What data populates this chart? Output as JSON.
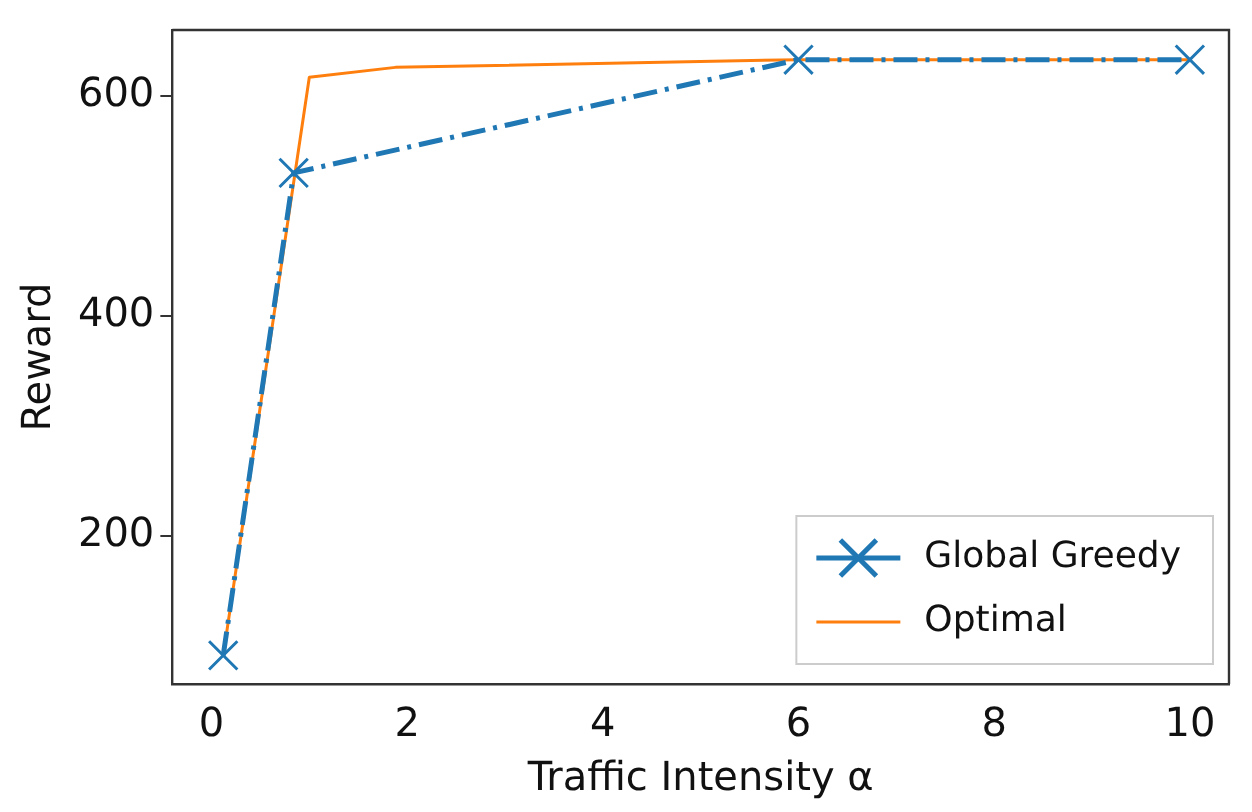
{
  "chart_data": {
    "type": "line",
    "xlabel": "Traffic Intensity α",
    "ylabel": "Reward",
    "xlim": [
      -0.4,
      10.4
    ],
    "xticks": [
      0,
      2,
      4,
      6,
      8,
      10
    ],
    "ylim": [
      65,
      660
    ],
    "yticks": [
      200,
      400,
      600
    ],
    "grid": false,
    "legend": "bottom right",
    "series": [
      {
        "name": "Global Greedy",
        "color": "#1f77b4",
        "x": [
          0.12,
          0.84,
          6,
          10
        ],
        "values": [
          91,
          530,
          633,
          633
        ],
        "marker": "cross",
        "line_style": "dashdot"
      },
      {
        "name": "Optimal",
        "color": "#ff7f0e",
        "x": [
          0.12,
          1.0,
          1.88,
          6,
          10
        ],
        "values": [
          91,
          617,
          626,
          633,
          633
        ],
        "marker": "none",
        "line_style": "solid"
      }
    ]
  }
}
